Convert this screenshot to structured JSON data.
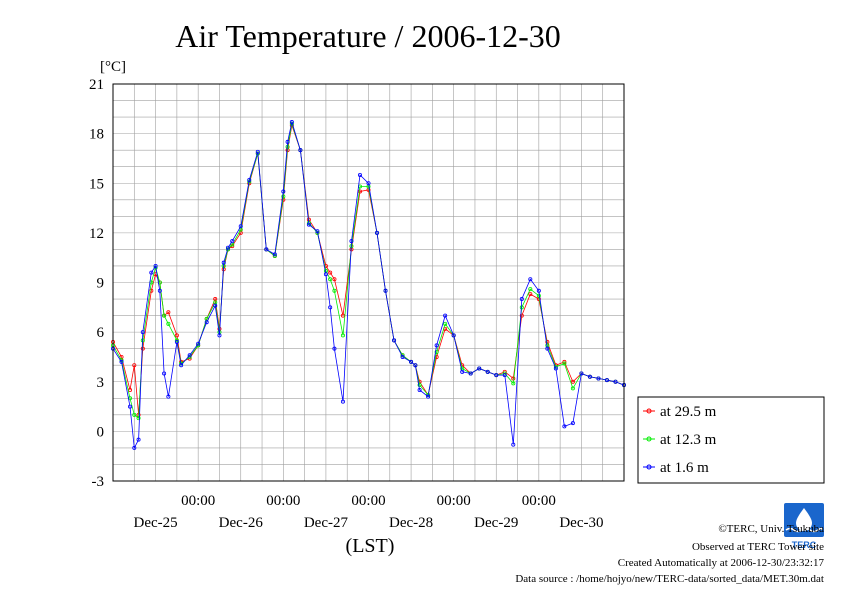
{
  "chart_data": {
    "type": "line",
    "title": "Air Temperature / 2006-12-30",
    "ylabel": "[°C]",
    "xlabel": "(LST)",
    "ylim": [
      -3,
      21
    ],
    "yticks": [
      "21",
      "18",
      "15",
      "12",
      "9",
      "6",
      "3",
      "0",
      "-3"
    ],
    "xlim_days": [
      0,
      6
    ],
    "xtick_time_label": "00:00",
    "xtick_dates": [
      "Dec-25",
      "Dec-26",
      "Dec-27",
      "Dec-28",
      "Dec-29",
      "Dec-30"
    ],
    "grid": true,
    "legend_placement": "bottom-right, outside plot",
    "x_days": [
      0.0,
      0.1,
      0.2,
      0.25,
      0.3,
      0.35,
      0.45,
      0.5,
      0.55,
      0.6,
      0.65,
      0.75,
      0.8,
      0.9,
      1.0,
      1.1,
      1.2,
      1.25,
      1.3,
      1.35,
      1.4,
      1.5,
      1.6,
      1.7,
      1.8,
      1.9,
      2.0,
      2.05,
      2.1,
      2.2,
      2.3,
      2.4,
      2.5,
      2.55,
      2.6,
      2.7,
      2.8,
      2.9,
      3.0,
      3.1,
      3.2,
      3.3,
      3.4,
      3.5,
      3.55,
      3.6,
      3.7,
      3.8,
      3.9,
      4.0,
      4.1,
      4.2,
      4.3,
      4.4,
      4.5,
      4.6,
      4.7,
      4.8,
      4.9,
      5.0,
      5.1,
      5.2,
      5.3,
      5.4,
      5.5,
      5.6,
      5.7,
      5.8,
      5.9,
      6.0
    ],
    "series": [
      {
        "name": "at 29.5 m",
        "color": "#ff0000",
        "values": [
          5.4,
          4.5,
          2.5,
          4.0,
          1.0,
          5.0,
          8.5,
          9.5,
          9.0,
          7.0,
          7.2,
          5.8,
          4.2,
          4.4,
          5.2,
          6.8,
          8.0,
          6.2,
          9.8,
          11.0,
          11.2,
          12.0,
          15.0,
          16.8,
          11.0,
          10.6,
          14.0,
          17.0,
          18.5,
          17.0,
          12.8,
          12.0,
          10.0,
          9.6,
          9.2,
          7.0,
          11.0,
          14.5,
          14.6,
          12.0,
          8.5,
          5.5,
          4.6,
          4.2,
          4.0,
          3.0,
          2.2,
          4.5,
          6.2,
          5.8,
          4.0,
          3.5,
          3.8,
          3.6,
          3.4,
          3.6,
          3.2,
          7.0,
          8.3,
          8.0,
          5.4,
          4.0,
          4.2,
          3.0,
          3.5,
          3.3,
          3.2,
          3.1,
          3.0,
          2.8
        ]
      },
      {
        "name": "at 12.3 m",
        "color": "#00ee00",
        "values": [
          5.2,
          4.3,
          2.0,
          1.0,
          0.8,
          5.5,
          9.0,
          9.9,
          9.0,
          7.0,
          6.5,
          5.5,
          4.1,
          4.5,
          5.2,
          6.8,
          7.8,
          6.0,
          10.0,
          11.0,
          11.3,
          12.2,
          15.1,
          16.8,
          11.0,
          10.6,
          14.2,
          17.2,
          18.6,
          17.0,
          12.6,
          12.0,
          9.7,
          9.2,
          8.5,
          5.8,
          11.2,
          14.8,
          14.8,
          12.0,
          8.5,
          5.5,
          4.6,
          4.2,
          4.0,
          2.8,
          2.2,
          4.8,
          6.5,
          5.8,
          3.8,
          3.5,
          3.8,
          3.6,
          3.4,
          3.5,
          2.9,
          7.5,
          8.6,
          8.2,
          5.2,
          3.9,
          4.1,
          2.6,
          3.5,
          3.3,
          3.2,
          3.1,
          3.0,
          2.8
        ]
      },
      {
        "name": "at 1.6 m",
        "color": "#0000ff",
        "values": [
          5.0,
          4.2,
          1.5,
          -1.0,
          -0.5,
          6.0,
          9.6,
          10.0,
          8.5,
          3.5,
          2.1,
          5.4,
          4.0,
          4.6,
          5.3,
          6.6,
          7.6,
          5.8,
          10.2,
          11.1,
          11.5,
          12.4,
          15.2,
          16.9,
          11.0,
          10.7,
          14.5,
          17.5,
          18.7,
          17.0,
          12.5,
          12.1,
          9.5,
          7.5,
          5.0,
          1.8,
          11.5,
          15.5,
          15.0,
          12.0,
          8.5,
          5.5,
          4.5,
          4.2,
          4.0,
          2.5,
          2.1,
          5.2,
          7.0,
          5.8,
          3.6,
          3.5,
          3.8,
          3.6,
          3.4,
          3.4,
          -0.8,
          8.0,
          9.2,
          8.5,
          5.0,
          3.8,
          0.3,
          0.5,
          3.5,
          3.3,
          3.2,
          3.1,
          3.0,
          2.8
        ]
      }
    ]
  },
  "credits": {
    "copyright": "©TERC, Univ. Tsukuba",
    "observed": "Observed at TERC Tower site",
    "created": "Created Automatically at 2006-12-30/23:32:17",
    "source": "Data source : /home/hojyo/new/TERC-data/sorted_data/MET.30m.dat"
  },
  "logo": {
    "text": "TERC",
    "color": "#1a66cc"
  }
}
